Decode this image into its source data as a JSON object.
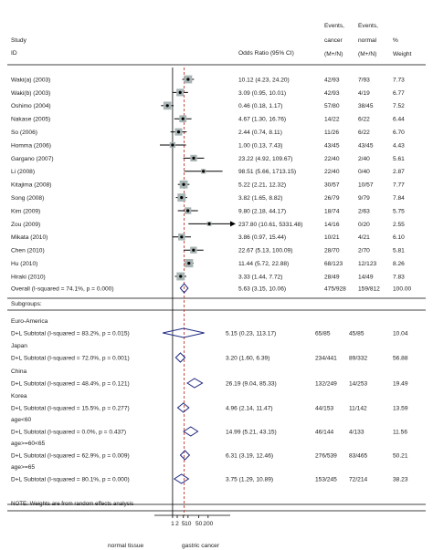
{
  "header": {
    "study": "Study",
    "id": "ID",
    "or_ci": "Odds Ratio (95% CI)",
    "events_cancer_1": "Events,",
    "events_cancer_2": "cancer",
    "events_cancer_3": "(M+/N)",
    "events_normal_1": "Events,",
    "events_normal_2": "normal",
    "events_normal_3": "(M+/N)",
    "weight_1": "%",
    "weight_2": "Weight"
  },
  "labels": {
    "subgroups": "Subgroups:",
    "note": "NOTE: Weights are from random effects analysis",
    "x_left": "normal tissue",
    "x_right": "gastric cancer"
  },
  "chart_data": {
    "type": "forest",
    "x_scale": "log",
    "x_ticks": [
      "1",
      "2",
      "5",
      "10",
      "50",
      "200"
    ],
    "x_tick_values": [
      1,
      2,
      5,
      10,
      50,
      200
    ],
    "reference_line": 1,
    "overall_dashed_line": 5.63,
    "studies": [
      {
        "id": "Waki(a) (2003)",
        "or": 10.12,
        "lo": 4.23,
        "hi": 24.2,
        "ci_text": "10.12 (4.23, 24.20)",
        "cancer": "42/93",
        "normal": "7/93",
        "weight": "7.73"
      },
      {
        "id": "Waki(b) (2003)",
        "or": 3.09,
        "lo": 0.95,
        "hi": 10.01,
        "ci_text": "3.09 (0.95, 10.01)",
        "cancer": "42/93",
        "normal": "4/19",
        "weight": "6.77"
      },
      {
        "id": "Oshimo (2004)",
        "or": 0.46,
        "lo": 0.18,
        "hi": 1.17,
        "ci_text": "0.46 (0.18, 1.17)",
        "cancer": "57/80",
        "normal": "38/45",
        "weight": "7.52"
      },
      {
        "id": "Nakase (2005)",
        "or": 4.67,
        "lo": 1.3,
        "hi": 16.76,
        "ci_text": "4.67 (1.30, 16.76)",
        "cancer": "14/22",
        "normal": "6/22",
        "weight": "6.44"
      },
      {
        "id": "So (2006)",
        "or": 2.44,
        "lo": 0.74,
        "hi": 8.11,
        "ci_text": "2.44 (0.74, 8.11)",
        "cancer": "11/26",
        "normal": "6/22",
        "weight": "6.70"
      },
      {
        "id": "Homma (2006)",
        "or": 1.0,
        "lo": 0.13,
        "hi": 7.43,
        "ci_text": "1.00 (0.13, 7.43)",
        "cancer": "43/45",
        "normal": "43/45",
        "weight": "4.43"
      },
      {
        "id": "Gargano (2007)",
        "or": 23.22,
        "lo": 4.92,
        "hi": 109.67,
        "ci_text": "23.22 (4.92, 109.67)",
        "cancer": "22/40",
        "normal": "2/40",
        "weight": "5.61"
      },
      {
        "id": "Li (2008)",
        "or": 98.51,
        "lo": 5.66,
        "hi": 1713.15,
        "ci_text": "98.51 (5.66, 1713.15)",
        "cancer": "22/40",
        "normal": "0/40",
        "weight": "2.87"
      },
      {
        "id": "Kitajima (2008)",
        "or": 5.22,
        "lo": 2.21,
        "hi": 12.32,
        "ci_text": "5.22 (2.21, 12.32)",
        "cancer": "30/57",
        "normal": "10/57",
        "weight": "7.77"
      },
      {
        "id": "Song (2008)",
        "or": 3.82,
        "lo": 1.65,
        "hi": 8.82,
        "ci_text": "3.82 (1.65, 8.82)",
        "cancer": "26/79",
        "normal": "9/79",
        "weight": "7.84"
      },
      {
        "id": "Kim (2009)",
        "or": 9.8,
        "lo": 2.18,
        "hi": 44.17,
        "ci_text": "9.80 (2.18, 44.17)",
        "cancer": "18/74",
        "normal": "2/63",
        "weight": "5.75"
      },
      {
        "id": "Zou (2009)",
        "or": 237.8,
        "lo": 10.61,
        "hi": 5331.48,
        "ci_text": "237.80 (10.61, 5331.48)",
        "cancer": "14/16",
        "normal": "0/20",
        "weight": "2.55",
        "arrow": true
      },
      {
        "id": "Mikata (2010)",
        "or": 3.86,
        "lo": 0.97,
        "hi": 15.44,
        "ci_text": "3.86 (0.97, 15.44)",
        "cancer": "10/21",
        "normal": "4/21",
        "weight": "6.10"
      },
      {
        "id": "Chen (2010)",
        "or": 22.67,
        "lo": 5.13,
        "hi": 100.09,
        "ci_text": "22.67 (5.13, 100.09)",
        "cancer": "28/70",
        "normal": "2/70",
        "weight": "5.81"
      },
      {
        "id": "Hu (2010)",
        "or": 11.44,
        "lo": 5.72,
        "hi": 22.88,
        "ci_text": "11.44 (5.72, 22.88)",
        "cancer": "68/123",
        "normal": "12/123",
        "weight": "8.26"
      },
      {
        "id": "Hiraki (2010)",
        "or": 3.33,
        "lo": 1.44,
        "hi": 7.72,
        "ci_text": "3.33 (1.44, 7.72)",
        "cancer": "28/49",
        "normal": "14/49",
        "weight": "7.83"
      }
    ],
    "overall": {
      "id": "Overall  (I-squared = 74.1%, p = 0.000)",
      "or": 5.63,
      "lo": 3.15,
      "hi": 10.06,
      "ci_text": "5.63 (3.15, 10.06)",
      "cancer": "475/928",
      "normal": "159/812",
      "weight": "100.00"
    },
    "subgroups": [
      {
        "group": "Euro-America",
        "label": "D+L Subtotal  (I-squared = 83.2%, p = 0.015)",
        "or": 5.15,
        "lo": 0.23,
        "hi": 113.17,
        "ci_text": "5.15 (0.23, 113.17)",
        "cancer": "65/85",
        "normal": "45/85",
        "weight": "10.04"
      },
      {
        "group": "Japan",
        "label": "D+L Subtotal  (I-squared = 72.0%, p = 0.001)",
        "or": 3.2,
        "lo": 1.6,
        "hi": 6.39,
        "ci_text": "3.20 (1.60, 6.39)",
        "cancer": "234/441",
        "normal": "89/332",
        "weight": "56.88"
      },
      {
        "group": "China",
        "label": "D+L Subtotal  (I-squared = 48.4%, p = 0.121)",
        "or": 26.19,
        "lo": 9.04,
        "hi": 85.33,
        "ci_text": "26.19 (9.04, 85.33)",
        "cancer": "132/249",
        "normal": "14/253",
        "weight": "19.49"
      },
      {
        "group": "Korea",
        "label": "D+L Subtotal  (I-squared = 15.5%, p = 0.277)",
        "or": 4.96,
        "lo": 2.14,
        "hi": 11.47,
        "ci_text": "4.96 (2.14, 11.47)",
        "cancer": "44/153",
        "normal": "11/142",
        "weight": "13.59"
      },
      {
        "group": "age<60",
        "label": "D+L Subtotal  (I-squared = 0.0%, p = 0.437)",
        "or": 14.99,
        "lo": 5.21,
        "hi": 43.15,
        "ci_text": "14.99 (5.21, 43.15)",
        "cancer": "46/144",
        "normal": "4/133",
        "weight": "11.56"
      },
      {
        "group": "age>=60<65",
        "label": "D+L Subtotal  (I-squared = 62.9%, p = 0.009)",
        "or": 6.31,
        "lo": 3.19,
        "hi": 12.46,
        "ci_text": "6.31 (3.19, 12.46)",
        "cancer": "276/539",
        "normal": "83/465",
        "weight": "50.21"
      },
      {
        "group": "age>=65",
        "label": "D+L Subtotal  (I-squared = 80.1%, p = 0.000)",
        "or": 3.75,
        "lo": 1.29,
        "hi": 10.89,
        "ci_text": "3.75 (1.29, 10.89)",
        "cancer": "153/245",
        "normal": "72/214",
        "weight": "38.23"
      }
    ]
  },
  "colors": {
    "diamond": "#1f2a80",
    "ref_dashed": "#c0392b",
    "box": "#a9b4b4",
    "line": "#000000"
  }
}
